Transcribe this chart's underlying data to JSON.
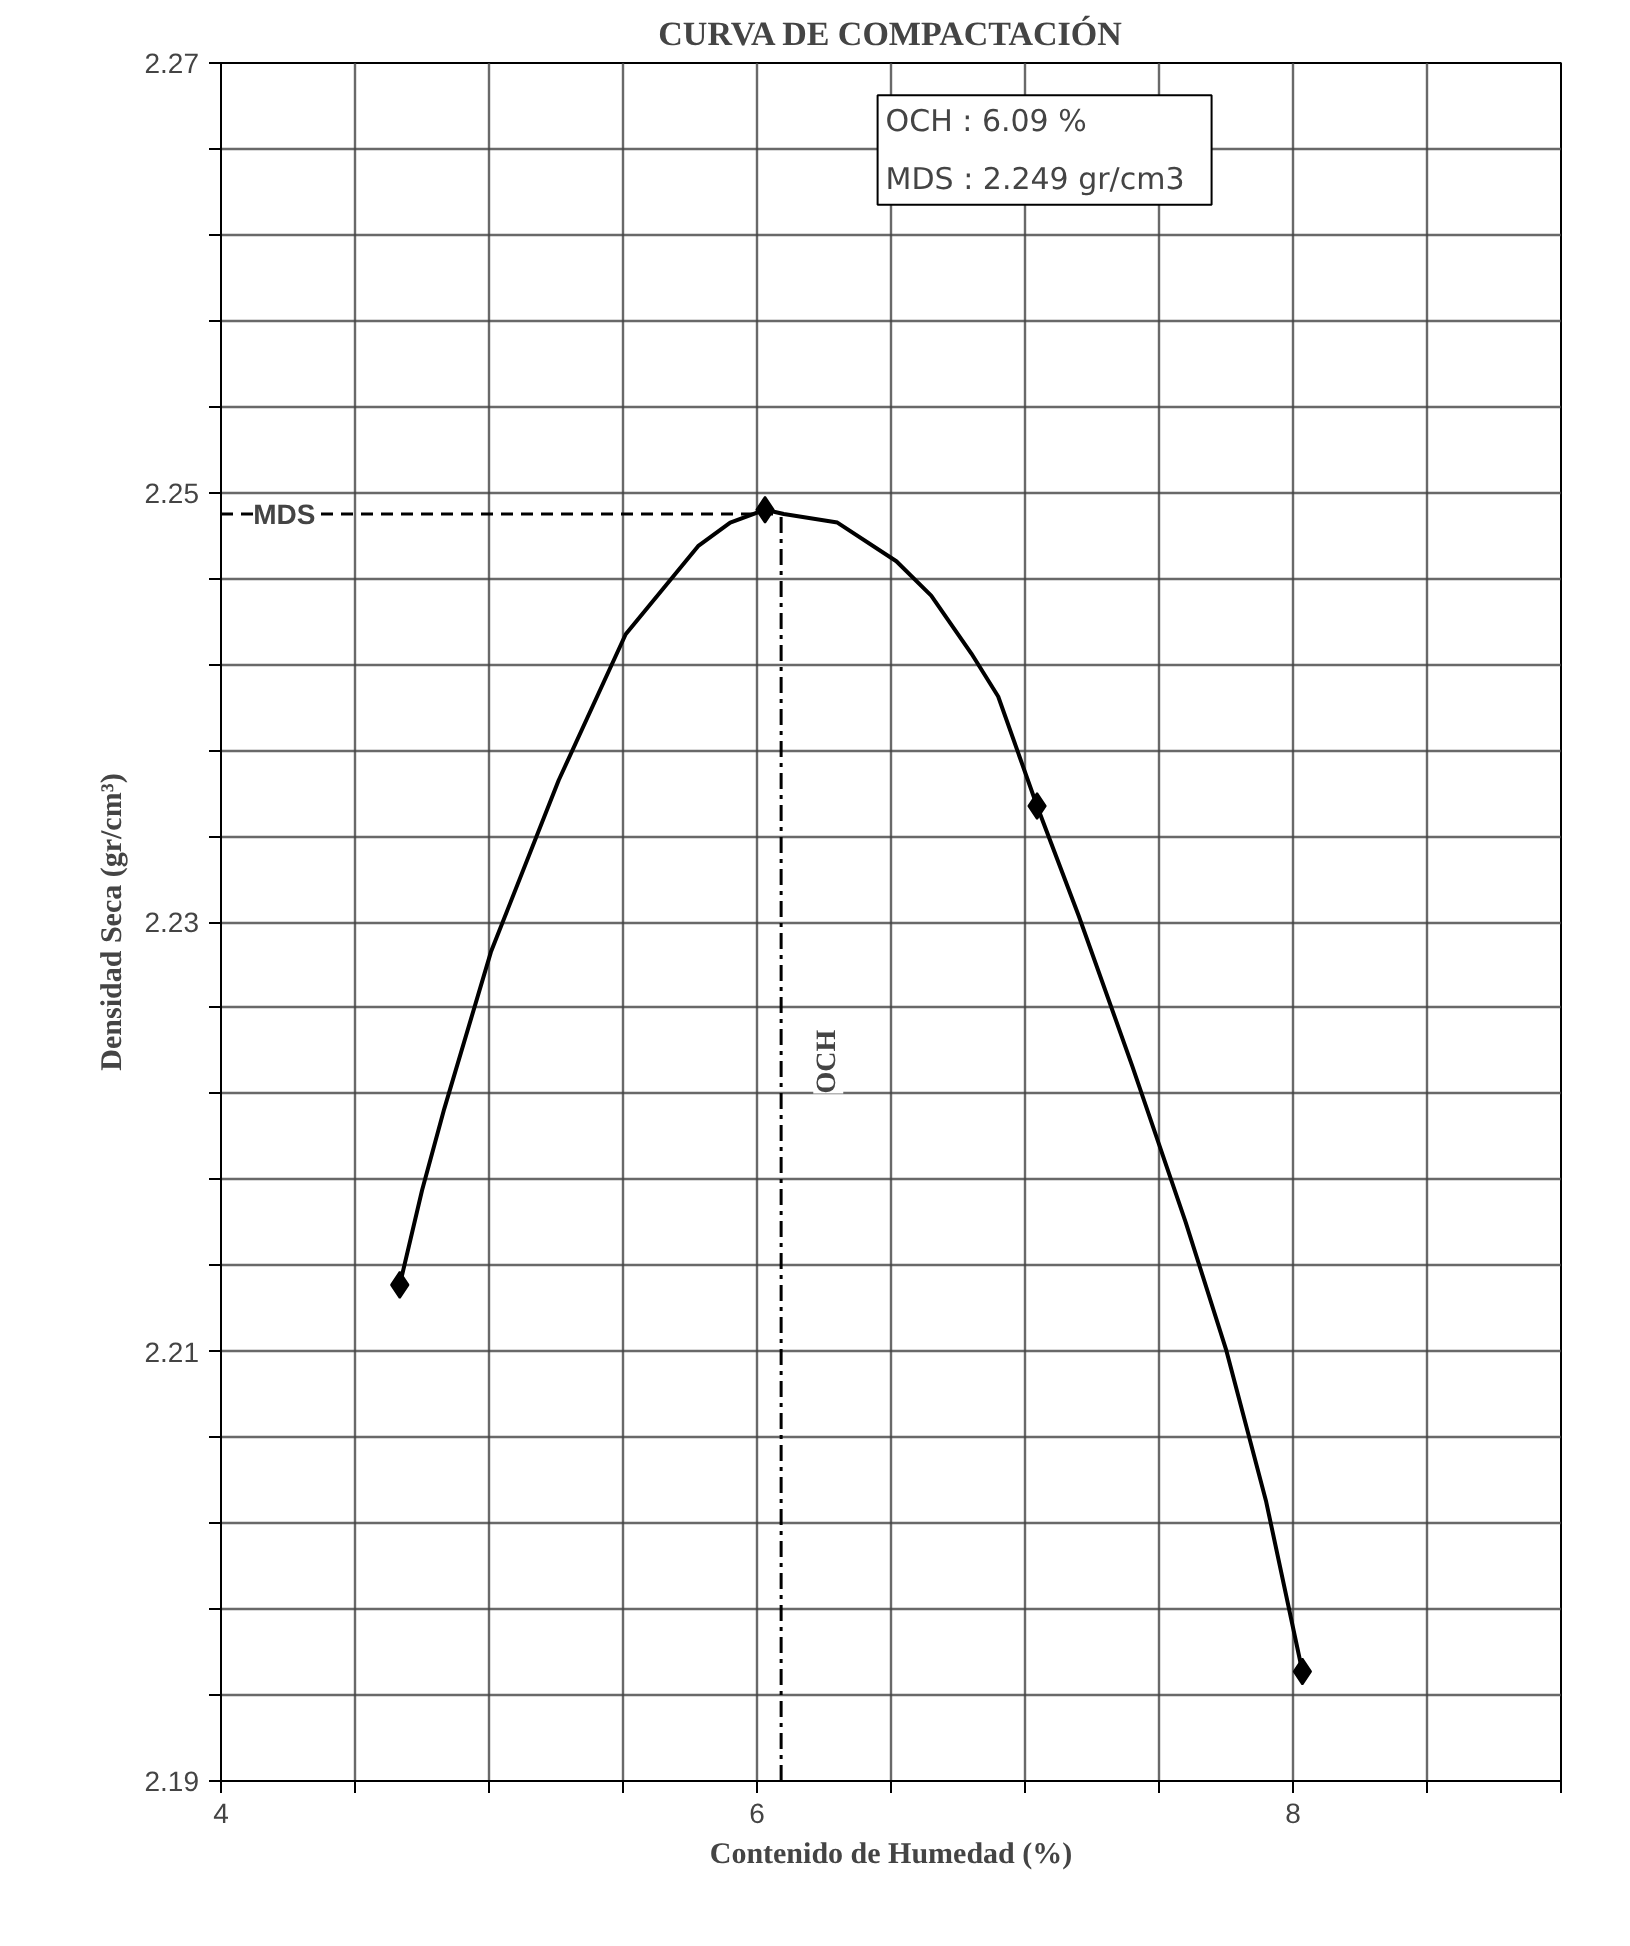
{
  "chart_data": {
    "type": "scatter",
    "title": "CURVA DE COMPACTACIÓN",
    "xlabel": "Contenido de Humedad (%)",
    "ylabel": "Densidad Seca (gr/cm³)",
    "series": [
      {
        "color": "#000000",
        "marker": "diamond",
        "x": [
          4.667,
          6.03,
          7.045,
          8.035
        ],
        "values": [
          2.2131,
          2.2492,
          2.2354,
          2.1951
        ]
      },
      {
        "type": "line",
        "color": "#000000",
        "line_style": "solid",
        "x": [
          4.667,
          4.75,
          4.833,
          5.007,
          5.26,
          5.51,
          5.78,
          5.9,
          6.03,
          6.1,
          6.3,
          6.52,
          6.65,
          6.8,
          6.9,
          7.045,
          7.2,
          7.4,
          7.6,
          7.75,
          7.9,
          8.035
        ],
        "values": [
          2.2131,
          2.2175,
          2.2213,
          2.2286,
          2.2366,
          2.2434,
          2.2475,
          2.2486,
          2.2492,
          2.249,
          2.2486,
          2.2468,
          2.2452,
          2.2425,
          2.2405,
          2.2354,
          2.2303,
          2.2233,
          2.216,
          2.2101,
          2.203,
          2.1951
        ]
      }
    ],
    "xlim": [
      4,
      9
    ],
    "ylim": [
      2.19,
      2.27
    ],
    "xticks": [
      4,
      {
        "value": 4.5,
        "label": null
      },
      {
        "value": 5,
        "label": null
      },
      {
        "value": 5.5,
        "label": null
      },
      6,
      {
        "value": 6.5,
        "label": null
      },
      {
        "value": 7,
        "label": null
      },
      {
        "value": 7.5,
        "label": null
      },
      8,
      {
        "value": 8.5,
        "label": null
      },
      {
        "value": 9,
        "label": null
      }
    ],
    "yticks": [
      2.19,
      {
        "value": 2.194,
        "label": null
      },
      {
        "value": 2.198,
        "label": null
      },
      {
        "value": 2.202,
        "label": null
      },
      {
        "value": 2.206,
        "label": null
      },
      2.21,
      {
        "value": 2.214,
        "label": null
      },
      {
        "value": 2.218,
        "label": null
      },
      {
        "value": 2.222,
        "label": null
      },
      {
        "value": 2.226,
        "label": null
      },
      2.23,
      {
        "value": 2.234,
        "label": null
      },
      {
        "value": 2.238,
        "label": null
      },
      {
        "value": 2.242,
        "label": null
      },
      {
        "value": 2.246,
        "label": null
      },
      2.25,
      {
        "value": 2.254,
        "label": null
      },
      {
        "value": 2.258,
        "label": null
      },
      {
        "value": 2.262,
        "label": null
      },
      {
        "value": 2.266,
        "label": null
      },
      2.27
    ],
    "grid": true,
    "ref_lines": [
      {
        "axis": "y",
        "value": 2.249,
        "label": "MDS",
        "line_style": "dashed",
        "color": "#000000"
      },
      {
        "axis": "x",
        "value": 6.09,
        "label": "OCH",
        "line_style": "dashdot",
        "color": "#000000"
      }
    ],
    "annotations": [
      "OCH :  6.09 %",
      "MDS  :  2.249 gr/cm3"
    ]
  }
}
